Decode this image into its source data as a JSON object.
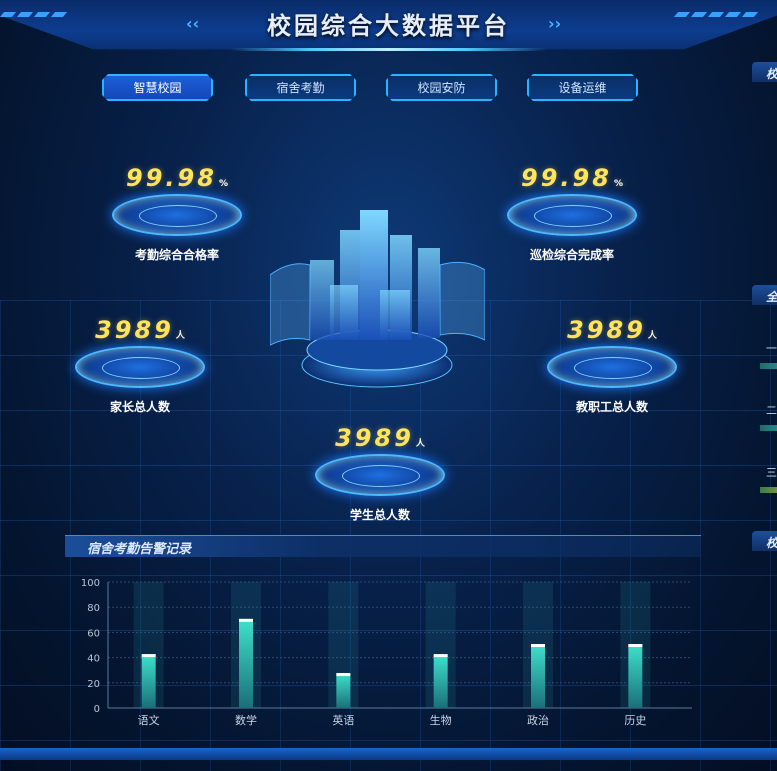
{
  "header": {
    "title": "校园综合大数据平台",
    "left_chevron": "‹‹",
    "right_chevron": "››"
  },
  "tabs": [
    {
      "label": "智慧校园",
      "active": true
    },
    {
      "label": "宿舍考勤"
    },
    {
      "label": "校园安防"
    },
    {
      "label": "设备运维"
    }
  ],
  "stats": [
    {
      "value": "99.98",
      "unit": "%",
      "label": "考勤综合合格率"
    },
    {
      "value": "99.98",
      "unit": "%",
      "label": "巡检综合完成率"
    },
    {
      "value": "3989",
      "unit": "人",
      "label": "家长总人数"
    },
    {
      "value": "3989",
      "unit": "人",
      "label": "教职工总人数"
    },
    {
      "value": "3989",
      "unit": "人",
      "label": "学生总人数"
    }
  ],
  "right_panel": {
    "headers": [
      "校",
      "全",
      "校"
    ],
    "rows": [
      "一",
      "二",
      "三"
    ]
  },
  "chart_panel": {
    "title": "宿舍考勤告警记录"
  },
  "colors": {
    "accent": "#2ab3ff",
    "value": "#ffe45c",
    "bar": "#2fc3b0"
  },
  "chart_data": {
    "type": "bar",
    "categories": [
      "语文",
      "数学",
      "英语",
      "生物",
      "政治",
      "历史"
    ],
    "values": [
      42,
      70,
      27,
      42,
      50,
      50
    ],
    "ylim": [
      0,
      100
    ],
    "yticks": [
      0,
      20,
      40,
      60,
      80,
      100
    ],
    "grid": true
  }
}
